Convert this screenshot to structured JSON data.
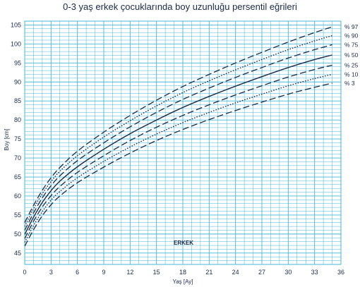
{
  "chart_data": {
    "type": "line",
    "title": "0-3 yaş erkek çocuklarında boy uzunluğu persentil eğrileri",
    "xlabel": "Yaş [Ay]",
    "ylabel": "Boy [cm]",
    "annotation": "ERKEK",
    "xlim": [
      0,
      36
    ],
    "ylim": [
      42,
      106
    ],
    "xticks": [
      0,
      3,
      6,
      9,
      12,
      15,
      18,
      21,
      24,
      27,
      30,
      33,
      36
    ],
    "yticks": [
      45,
      50,
      55,
      60,
      65,
      70,
      75,
      80,
      85,
      90,
      95,
      100,
      105
    ],
    "grid": true,
    "colors": {
      "grid": "#40b8d8",
      "line": "#1a2a4a",
      "text": "#1a2a4a"
    },
    "x": [
      0,
      1,
      2,
      3,
      4,
      6,
      9,
      12,
      15,
      18,
      21,
      24,
      27,
      30,
      33,
      35
    ],
    "series": [
      {
        "name": "% 97",
        "style": "dashed",
        "values": [
          53.0,
          57.5,
          61.5,
          64.8,
          67.5,
          71.8,
          76.8,
          81.2,
          85.2,
          88.8,
          92.0,
          95.0,
          97.8,
          100.5,
          103.0,
          104.5
        ]
      },
      {
        "name": "% 90",
        "style": "dotted",
        "values": [
          52.0,
          56.6,
          60.6,
          63.8,
          66.5,
          70.6,
          75.5,
          79.8,
          83.7,
          87.2,
          90.3,
          93.2,
          95.9,
          98.5,
          100.8,
          102.2
        ]
      },
      {
        "name": "% 75",
        "style": "dashed",
        "values": [
          51.0,
          55.5,
          59.5,
          62.7,
          65.3,
          69.3,
          74.0,
          78.2,
          82.0,
          85.4,
          88.4,
          91.2,
          93.8,
          96.3,
          98.5,
          99.8
        ]
      },
      {
        "name": "% 50",
        "style": "solid",
        "values": [
          49.9,
          54.4,
          58.3,
          61.4,
          63.9,
          67.7,
          72.3,
          76.4,
          80.0,
          83.3,
          86.2,
          88.9,
          91.4,
          93.8,
          95.9,
          97.1
        ]
      },
      {
        "name": "% 25",
        "style": "dashed",
        "values": [
          48.8,
          53.3,
          57.1,
          60.1,
          62.5,
          66.2,
          70.6,
          74.6,
          78.1,
          81.2,
          84.0,
          86.6,
          89.0,
          91.3,
          93.3,
          94.4
        ]
      },
      {
        "name": "% 10",
        "style": "dotted",
        "values": [
          47.8,
          52.2,
          55.9,
          58.9,
          61.2,
          64.8,
          69.1,
          72.9,
          76.3,
          79.3,
          82.0,
          84.5,
          86.8,
          89.0,
          90.9,
          92.0
        ]
      },
      {
        "name": "% 3",
        "style": "dashed",
        "values": [
          46.8,
          51.1,
          54.8,
          57.7,
          60.0,
          63.5,
          67.6,
          71.3,
          74.6,
          77.5,
          80.1,
          82.5,
          84.7,
          86.8,
          88.6,
          89.7
        ]
      }
    ]
  }
}
